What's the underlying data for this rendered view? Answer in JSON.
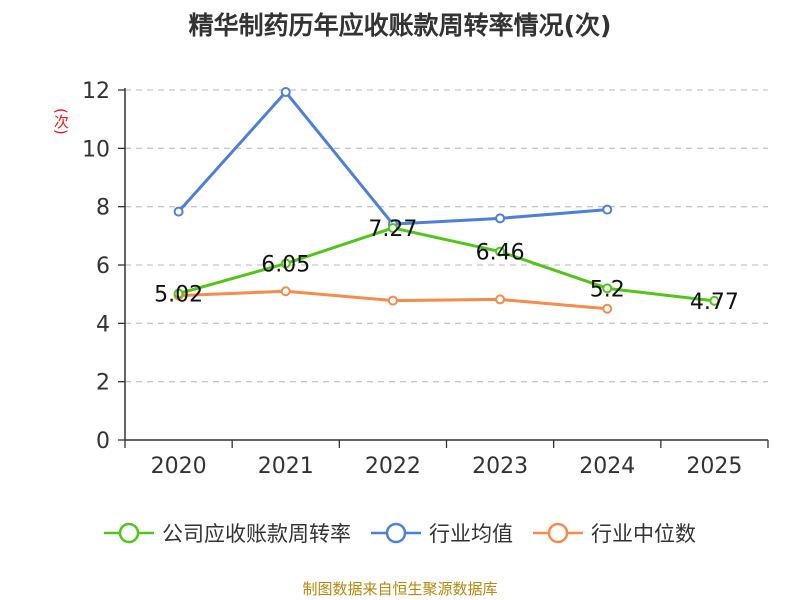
{
  "chart_data": {
    "type": "line",
    "title": "精华制药历年应收账款周转率情况(次)",
    "ylabel": "(次)",
    "xlabel": "",
    "categories": [
      "2020",
      "2021",
      "2022",
      "2023",
      "2024",
      "2025"
    ],
    "ylim": [
      0,
      12
    ],
    "yticks": [
      0,
      2,
      4,
      6,
      8,
      10,
      12
    ],
    "grid": true,
    "legend_position": "bottom",
    "series": [
      {
        "name": "公司应收账款周转率",
        "values": [
          5.02,
          6.05,
          7.27,
          6.46,
          5.2,
          4.77
        ],
        "data_labels": [
          "5.02",
          "6.05",
          "7.27",
          "6.46",
          "5.2",
          "4.77"
        ],
        "color": "#52c41a"
      },
      {
        "name": "行业均值",
        "values": [
          7.83,
          11.93,
          7.4,
          7.6,
          7.9,
          null
        ],
        "color": "#4f7fd8"
      },
      {
        "name": "行业中位数",
        "values": [
          4.95,
          5.1,
          4.78,
          4.82,
          4.5,
          null
        ],
        "color": "#f58b4c"
      }
    ]
  },
  "footer": {
    "source": "制图数据来自恒生聚源数据库"
  }
}
